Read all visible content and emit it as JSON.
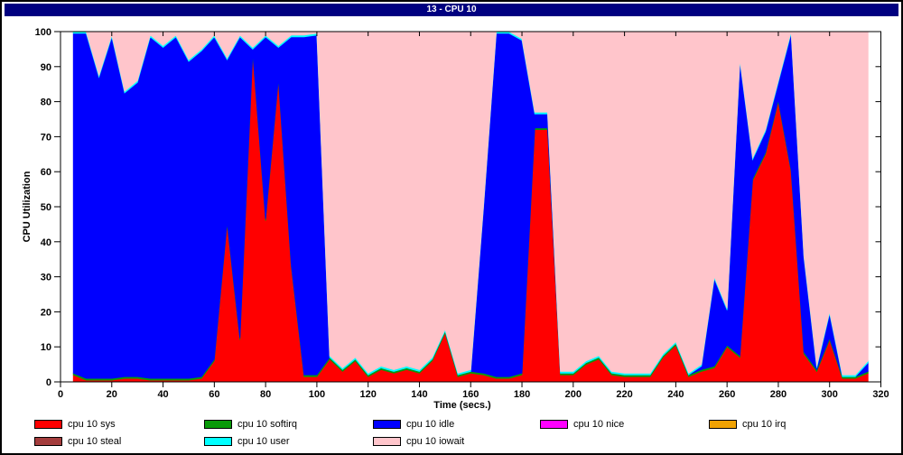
{
  "window": {
    "title": "13 - CPU 10",
    "title_bar_color": "#000080",
    "title_text_color": "#FFFFFF"
  },
  "chart_data": {
    "type": "area",
    "stacked": true,
    "title": "13 - CPU 10",
    "xlabel": "Time (secs.)",
    "ylabel": "CPU Utilization",
    "xlim": [
      0,
      320
    ],
    "ylim": [
      0,
      100
    ],
    "x_tick_step": 20,
    "y_tick_step": 10,
    "grid": false,
    "legend_position": "bottom",
    "plot_background": "#FFFFFF",
    "x": [
      5,
      10,
      15,
      20,
      25,
      30,
      35,
      40,
      45,
      50,
      55,
      60,
      65,
      70,
      75,
      80,
      85,
      90,
      95,
      100,
      105,
      110,
      115,
      120,
      125,
      130,
      135,
      140,
      145,
      150,
      155,
      160,
      165,
      170,
      175,
      180,
      185,
      190,
      195,
      200,
      205,
      210,
      215,
      220,
      225,
      230,
      235,
      240,
      245,
      250,
      255,
      260,
      265,
      270,
      275,
      280,
      285,
      290,
      295,
      300,
      305,
      310,
      315
    ],
    "series": [
      {
        "name": "cpu 10 sys",
        "color": "#FF0000",
        "values": [
          2,
          0.5,
          0.5,
          0.5,
          1,
          1,
          0.5,
          0.5,
          0.5,
          0.5,
          1,
          6,
          45,
          12,
          93.5,
          46,
          86,
          33,
          1.5,
          1.5,
          6.5,
          3,
          6,
          1.5,
          3.5,
          2.5,
          3.5,
          2.5,
          6,
          14,
          1.5,
          2.5,
          2,
          1,
          1,
          2,
          72,
          72,
          2,
          2,
          5,
          6.5,
          2,
          1.5,
          1.5,
          1.5,
          7,
          10.5,
          1.5,
          3,
          4,
          10,
          7,
          57.5,
          65,
          80,
          60,
          8,
          3,
          12,
          1,
          1,
          2.5
        ]
      },
      {
        "name": "cpu 10 softirq",
        "color": "#089A08",
        "values": [
          0.5,
          0.5,
          0.5,
          0.5,
          0.5,
          0.5,
          0.5,
          0.5,
          0.5,
          0.5,
          0.5,
          0.5,
          0.5,
          0.5,
          0.5,
          0.5,
          0.5,
          0.5,
          0.5,
          0.5,
          0.5,
          0.5,
          0.5,
          0.5,
          0.5,
          0.5,
          0.5,
          0.5,
          0.5,
          0.5,
          0.5,
          0.5,
          0.5,
          0.5,
          0.5,
          0.5,
          0.5,
          0.5,
          0.5,
          0.5,
          0.5,
          0.5,
          0.5,
          0.5,
          0.5,
          0.5,
          0.5,
          0.5,
          0.5,
          0.5,
          0.5,
          0.5,
          0.5,
          0.5,
          0.5,
          0.5,
          0.5,
          0.5,
          0.5,
          0.5,
          0.5,
          0.5,
          0.5
        ]
      },
      {
        "name": "cpu 10 idle",
        "color": "#0000FF",
        "values": [
          97,
          98.5,
          86,
          97.5,
          81,
          84,
          97.5,
          94.5,
          97.5,
          90.5,
          93,
          92,
          46.5,
          86,
          1,
          52,
          9,
          65,
          96.5,
          97,
          0,
          0,
          0,
          0,
          0,
          0,
          0,
          0,
          0,
          0,
          0,
          0,
          47,
          98,
          98,
          95,
          4,
          4,
          0,
          0,
          0,
          0,
          0,
          0,
          0,
          0,
          0,
          0,
          0,
          1,
          25,
          10,
          84,
          5.5,
          6,
          5,
          39,
          27,
          0.5,
          7,
          0,
          0,
          2.5
        ]
      },
      {
        "name": "cpu 10 nice",
        "color": "#FF00FF",
        "values": [
          0,
          0,
          0,
          0,
          0,
          0,
          0,
          0,
          0,
          0,
          0,
          0,
          0,
          0,
          0,
          0,
          0,
          0,
          0,
          0,
          0,
          0,
          0,
          0,
          0,
          0,
          0,
          0,
          0,
          0,
          0,
          0,
          0,
          0,
          0,
          0,
          0,
          0,
          0,
          0,
          0,
          0,
          0,
          0,
          0,
          0,
          0,
          0,
          0,
          0,
          0,
          0,
          0,
          0,
          0,
          0,
          0,
          0,
          0,
          0,
          0,
          0,
          0
        ]
      },
      {
        "name": "cpu 10 irq",
        "color": "#F0A202",
        "values": [
          0,
          0,
          0,
          0,
          0,
          0,
          0,
          0,
          0,
          0,
          0,
          0,
          0,
          0,
          0,
          0,
          0,
          0,
          0,
          0,
          0,
          0,
          0,
          0,
          0,
          0,
          0,
          0,
          0,
          0,
          0,
          0,
          0,
          0,
          0,
          0,
          0,
          0,
          0,
          0,
          0,
          0,
          0,
          0,
          0,
          0,
          0,
          0,
          0,
          0,
          0,
          0,
          0,
          0,
          0,
          0,
          0,
          0,
          0,
          0,
          0,
          0,
          0
        ]
      },
      {
        "name": "cpu 10 steal",
        "color": "#A43D3D",
        "values": [
          0,
          0,
          0,
          0,
          0,
          0,
          0,
          0,
          0,
          0,
          0,
          0,
          0,
          0,
          0,
          0,
          0,
          0,
          0,
          0,
          0,
          0,
          0,
          0,
          0,
          0,
          0,
          0,
          0,
          0,
          0,
          0,
          0,
          0,
          0,
          0,
          0,
          0,
          0,
          0,
          0,
          0,
          0,
          0,
          0,
          0,
          0,
          0,
          0,
          0,
          0,
          0,
          0,
          0,
          0,
          0,
          0,
          0,
          0,
          0,
          0,
          0,
          0
        ]
      },
      {
        "name": "cpu 10 user",
        "color": "#00FFFF",
        "values": [
          0.5,
          0.5,
          0.5,
          0.5,
          0.5,
          0.5,
          0.5,
          0.5,
          0.5,
          0.5,
          0.5,
          0.5,
          0.5,
          0.5,
          0.5,
          0.5,
          0.5,
          0.5,
          0.5,
          0.5,
          0.5,
          0.5,
          0.5,
          0.5,
          0.5,
          0.5,
          0.5,
          0.5,
          0.5,
          0.5,
          0.5,
          0.5,
          0.5,
          0.5,
          0.5,
          0.5,
          0.5,
          0.5,
          0.5,
          0.5,
          0.5,
          0.5,
          0.5,
          0.5,
          0.5,
          0.5,
          0.5,
          0.5,
          0.5,
          0.5,
          0.5,
          0.5,
          0.5,
          0.5,
          0.5,
          0.5,
          0.5,
          0.5,
          0.5,
          0.5,
          0.5,
          0.5,
          0.5
        ]
      },
      {
        "name": "cpu 10 iowait",
        "color": "#FFC5CB",
        "values": [
          0,
          0,
          12.5,
          1,
          17,
          14,
          1,
          4,
          1,
          8,
          5,
          1,
          7.5,
          1,
          4.5,
          1,
          4,
          1,
          1,
          0.5,
          92.5,
          96,
          93,
          97.5,
          95.5,
          96.5,
          95.5,
          96.5,
          93,
          85,
          97.5,
          96.5,
          50,
          0,
          0,
          2,
          23,
          23,
          97,
          97,
          94,
          92.5,
          97,
          97.5,
          97.5,
          97.5,
          92,
          88.5,
          97.5,
          95,
          70,
          79,
          8,
          36,
          28,
          14,
          0,
          64,
          95.5,
          80,
          98,
          98,
          94
        ]
      }
    ]
  }
}
